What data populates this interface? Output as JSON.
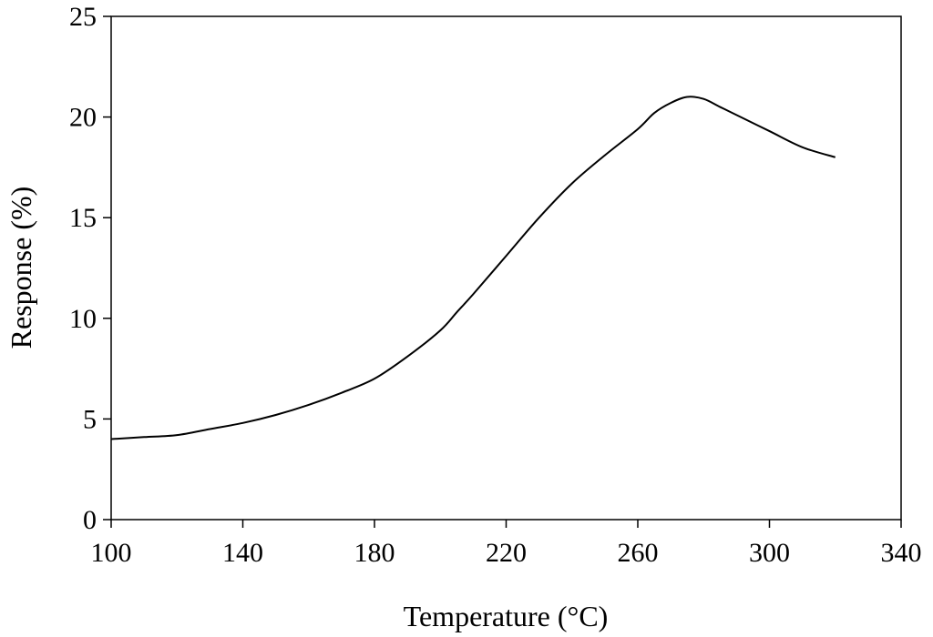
{
  "chart_data": {
    "type": "line",
    "title": "",
    "xlabel": "Temperature (°C)",
    "ylabel": "Response (%)",
    "xlim": [
      100,
      340
    ],
    "ylim": [
      0,
      25
    ],
    "xticks": [
      100,
      140,
      180,
      220,
      260,
      300,
      340
    ],
    "yticks": [
      0,
      5,
      10,
      15,
      20,
      25
    ],
    "grid": false,
    "legend": "none",
    "series": [
      {
        "color": "#000000",
        "x": [
          100,
          110,
          120,
          130,
          140,
          150,
          160,
          170,
          180,
          190,
          200,
          205,
          210,
          220,
          230,
          240,
          250,
          260,
          265,
          270,
          275,
          280,
          285,
          290,
          300,
          310,
          320
        ],
        "y": [
          4.0,
          4.1,
          4.2,
          4.5,
          4.8,
          5.2,
          5.7,
          6.3,
          7.0,
          8.1,
          9.4,
          10.3,
          11.2,
          13.1,
          15.0,
          16.7,
          18.1,
          19.4,
          20.2,
          20.7,
          21.0,
          20.9,
          20.5,
          20.1,
          19.3,
          18.5,
          18.0
        ]
      }
    ]
  }
}
